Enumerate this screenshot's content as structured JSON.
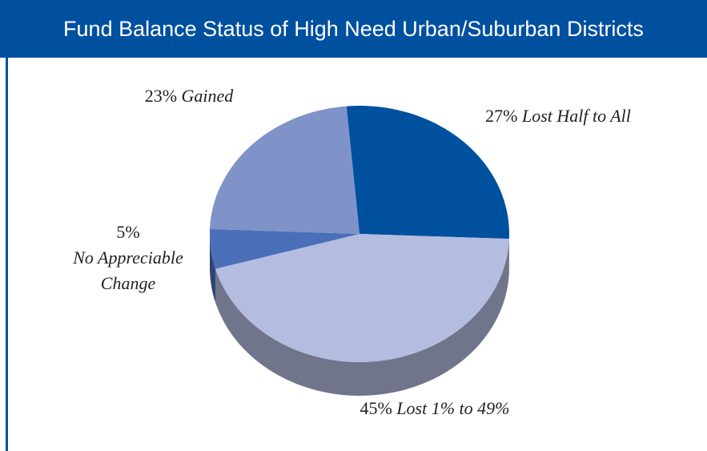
{
  "chart_data": {
    "type": "pie",
    "title": "Fund Balance Status of High Need Urban/Suburban Districts",
    "categories": [
      "Lost Half to All",
      "Lost 1% to 49%",
      "No Appreciable Change",
      "Gained"
    ],
    "values": [
      27,
      45,
      5,
      23
    ],
    "value_labels": [
      "27%",
      "45%",
      "5%",
      "23%"
    ],
    "colors": [
      "#0050a0",
      "#b4bde0",
      "#4a6fb8",
      "#7f93c8"
    ]
  }
}
